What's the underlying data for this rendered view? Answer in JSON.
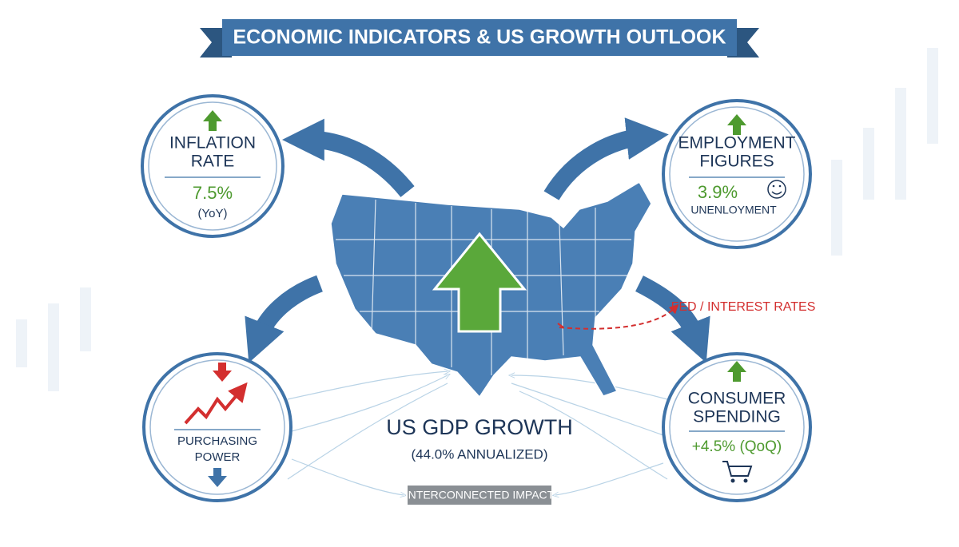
{
  "title": "ECONOMIC INDICATORS & US GROWTH OUTLOOK",
  "nodes": [
    {
      "title": [
        "INFLATION",
        "RATE"
      ],
      "value": "7.5%",
      "note": "(YoY)"
    },
    {
      "title": [
        "EMPLOYMENT",
        "FIGURES"
      ],
      "value": "3.9%",
      "note": "UNENLOYMENT"
    },
    {
      "title": [
        "PURCHASING",
        "POWER"
      ]
    },
    {
      "title": [
        "CONSUMER",
        "SPENDING"
      ],
      "value": "+4.5% (QoQ)"
    }
  ],
  "center": {
    "title": "US GDP GROWTH",
    "subtitle": "(44.0% ANNUALIZED)"
  },
  "fed_label": "FED / INTEREST RATES",
  "footer_label": "INTERCONNECTED IMPACT"
}
